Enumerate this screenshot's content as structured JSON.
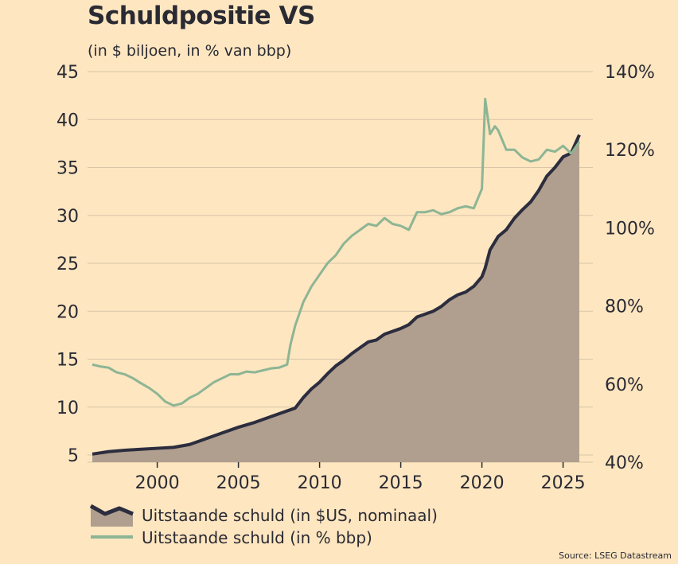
{
  "chart_data": {
    "type": "line",
    "title": "Schuldpositie VS",
    "subtitle": "(in $ biljoen, in % van bbp)",
    "xlabel": "",
    "xlim": [
      1996,
      2027
    ],
    "x_ticks": [
      {
        "value": 2000,
        "label": "2000"
      },
      {
        "value": 2005,
        "label": "2005"
      },
      {
        "value": 2010,
        "label": "2010"
      },
      {
        "value": 2015,
        "label": "2015"
      },
      {
        "value": 2020,
        "label": "2020"
      },
      {
        "value": 2025,
        "label": "2025"
      }
    ],
    "y_left": {
      "ylim": [
        4,
        45
      ],
      "ticks": [
        {
          "value": 45,
          "label": "45"
        },
        {
          "value": 40,
          "label": "40"
        },
        {
          "value": 35,
          "label": "35"
        },
        {
          "value": 30,
          "label": "30"
        },
        {
          "value": 25,
          "label": "25"
        },
        {
          "value": 20,
          "label": "20"
        },
        {
          "value": 15,
          "label": "15"
        },
        {
          "value": 10,
          "label": "10"
        },
        {
          "value": 5,
          "label": "5"
        }
      ]
    },
    "y_right": {
      "ylim": [
        40,
        140
      ],
      "ticks": [
        {
          "value": 140,
          "label": "140%"
        },
        {
          "value": 120,
          "label": "120%"
        },
        {
          "value": 100,
          "label": "100%"
        },
        {
          "value": 80,
          "label": "80%"
        },
        {
          "value": 60,
          "label": "60%"
        },
        {
          "value": 40,
          "label": "40%"
        }
      ]
    },
    "grid": true,
    "legend_position": "bottom-left",
    "series": [
      {
        "name": "Uitstaande schuld (in $US, nominaal)",
        "axis": "left",
        "style": "area",
        "color": "#2c2d3e",
        "fill": "#b09f8e",
        "x": [
          1996.0,
          1997.0,
          1998.0,
          1999.0,
          2000.0,
          2001.0,
          2002.0,
          2003.0,
          2004.0,
          2005.0,
          2006.0,
          2007.0,
          2008.0,
          2008.5,
          2009.0,
          2009.5,
          2010.0,
          2010.5,
          2011.0,
          2011.5,
          2012.0,
          2012.5,
          2013.0,
          2013.5,
          2014.0,
          2015.0,
          2015.5,
          2016.0,
          2017.0,
          2017.5,
          2018.0,
          2018.5,
          2019.0,
          2019.5,
          2020.0,
          2020.2,
          2020.5,
          2021.0,
          2021.5,
          2022.0,
          2022.5,
          2023.0,
          2023.5,
          2024.0,
          2024.5,
          2025.0,
          2025.5,
          2026.0
        ],
        "values": [
          5.1,
          5.35,
          5.5,
          5.6,
          5.7,
          5.8,
          6.1,
          6.7,
          7.3,
          7.9,
          8.4,
          9.0,
          9.6,
          9.9,
          11.0,
          11.9,
          12.6,
          13.5,
          14.3,
          14.9,
          15.6,
          16.2,
          16.8,
          17.0,
          17.6,
          18.2,
          18.6,
          19.4,
          20.0,
          20.5,
          21.2,
          21.7,
          22.0,
          22.6,
          23.6,
          24.5,
          26.4,
          27.8,
          28.5,
          29.7,
          30.6,
          31.4,
          32.6,
          34.1,
          35.0,
          36.1,
          36.5,
          38.4
        ]
      },
      {
        "name": "Uitstaande schuld (in % bbp)",
        "axis": "right",
        "style": "line",
        "color": "#8db594",
        "x": [
          1996.0,
          1996.5,
          1997.0,
          1997.5,
          1998.0,
          1998.5,
          1999.0,
          1999.5,
          2000.0,
          2000.5,
          2001.0,
          2001.5,
          2002.0,
          2002.5,
          2003.0,
          2003.5,
          2004.0,
          2004.5,
          2005.0,
          2005.5,
          2006.0,
          2006.5,
          2007.0,
          2007.5,
          2008.0,
          2008.2,
          2008.5,
          2009.0,
          2009.5,
          2010.0,
          2010.5,
          2011.0,
          2011.5,
          2012.0,
          2012.5,
          2013.0,
          2013.5,
          2014.0,
          2014.5,
          2015.0,
          2015.5,
          2016.0,
          2016.5,
          2017.0,
          2017.5,
          2018.0,
          2018.5,
          2019.0,
          2019.5,
          2020.0,
          2020.2,
          2020.5,
          2020.8,
          2021.0,
          2021.5,
          2022.0,
          2022.5,
          2023.0,
          2023.5,
          2024.0,
          2024.5,
          2025.0,
          2025.5,
          2026.0
        ],
        "values": [
          65.0,
          64.5,
          64.2,
          63.0,
          62.5,
          61.5,
          60.2,
          59.0,
          57.5,
          55.5,
          54.5,
          55.0,
          56.5,
          57.5,
          59.0,
          60.5,
          61.5,
          62.5,
          62.5,
          63.2,
          63.0,
          63.5,
          64.0,
          64.2,
          65.0,
          70.0,
          75.0,
          81.0,
          85.0,
          88.0,
          91.0,
          93.0,
          96.0,
          98.0,
          99.5,
          101.0,
          100.5,
          102.5,
          101.0,
          100.5,
          99.5,
          104.0,
          104.0,
          104.5,
          103.5,
          104.0,
          105.0,
          105.5,
          105.0,
          110.0,
          133.0,
          124.0,
          126.0,
          125.0,
          120.0,
          120.0,
          118.0,
          117.0,
          117.5,
          120.0,
          119.5,
          121.0,
          119.0,
          122.0
        ]
      }
    ]
  },
  "source": "Source: LSEG Datastream"
}
